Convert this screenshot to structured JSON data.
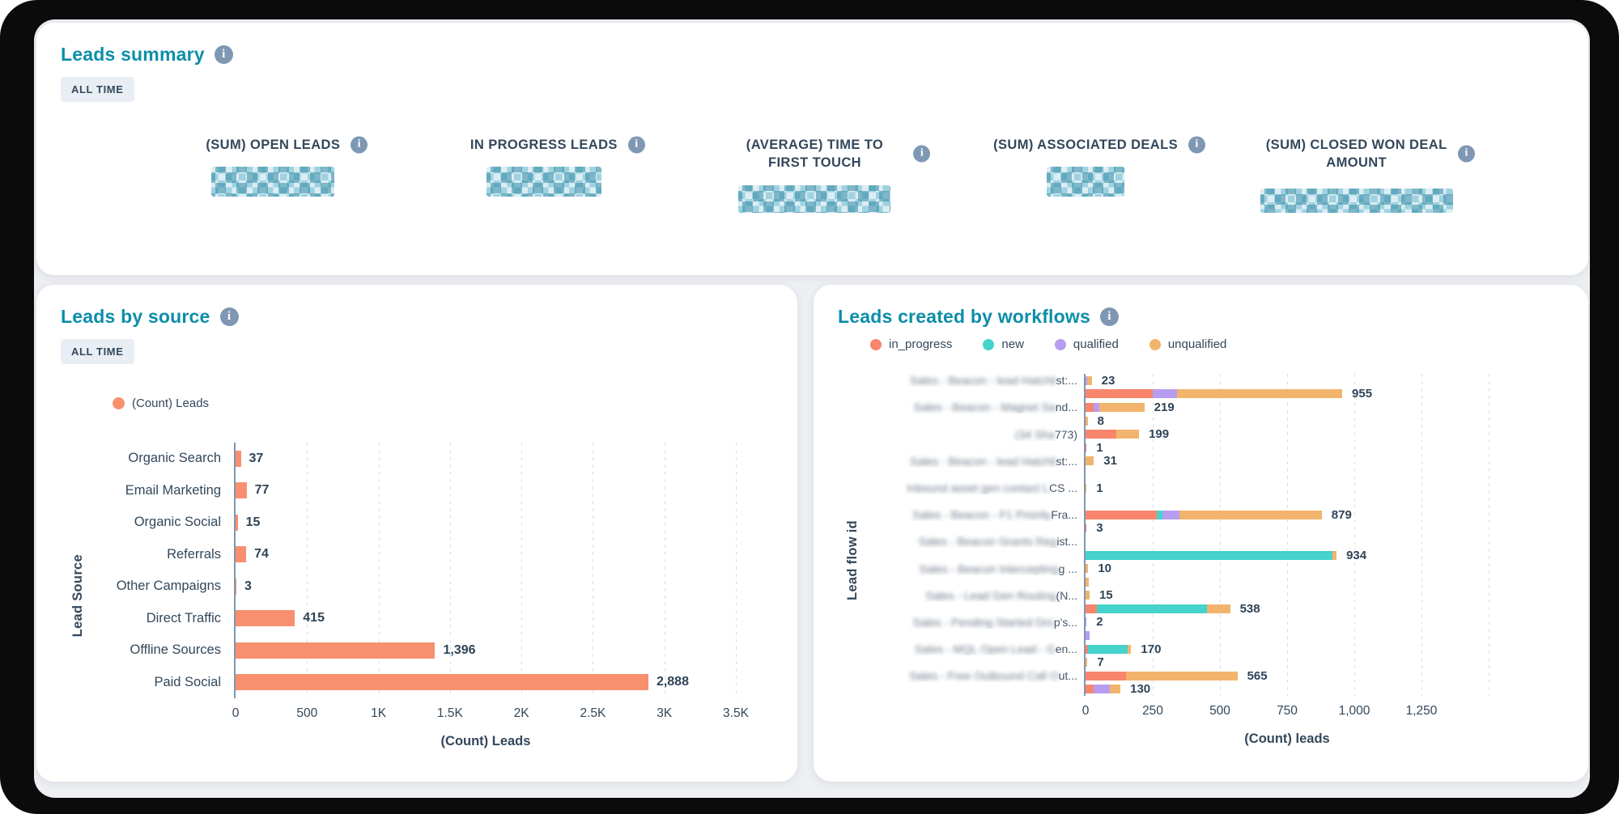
{
  "icons": {
    "info_glyph": "i"
  },
  "summary": {
    "title": "Leads summary",
    "time_range": "ALL TIME",
    "kpis": [
      {
        "label": "(SUM) OPEN LEADS",
        "value_redacted": true
      },
      {
        "label": "IN PROGRESS LEADS",
        "value_redacted": true
      },
      {
        "label": "(AVERAGE) TIME TO FIRST TOUCH",
        "value_redacted": true
      },
      {
        "label": "(SUM) ASSOCIATED DEALS",
        "value_redacted": true
      },
      {
        "label": "(SUM) CLOSED WON DEAL AMOUNT",
        "value_redacted": true
      }
    ]
  },
  "source_panel": {
    "time_range": "ALL TIME"
  },
  "chart_data": [
    {
      "type": "bar",
      "orientation": "horizontal",
      "title": "Leads by source",
      "xlabel": "(Count) Leads",
      "ylabel": "Lead Source",
      "xlim": [
        0,
        3500
      ],
      "grid_step": 500,
      "grid": true,
      "legend_position": "top-left",
      "series_name": "(Count) Leads",
      "color": "#F8906F",
      "legend": [
        {
          "name": "(Count) Leads",
          "color": "#F8906F"
        }
      ],
      "categories": [
        "Organic Search",
        "Email Marketing",
        "Organic Social",
        "Referrals",
        "Other Campaigns",
        "Direct Traffic",
        "Offline Sources",
        "Paid Social"
      ],
      "values": [
        37,
        77,
        15,
        74,
        3,
        415,
        1396,
        2888
      ],
      "value_labels": [
        "37",
        "77",
        "15",
        "74",
        "3",
        "415",
        "1,396",
        "2,888"
      ],
      "xticks": [
        "0",
        "500",
        "1K",
        "1.5K",
        "2K",
        "2.5K",
        "3K",
        "3.5K"
      ]
    },
    {
      "type": "bar",
      "orientation": "horizontal",
      "stacked": true,
      "title": "Leads created by workflows",
      "xlabel": "(Count) leads",
      "ylabel": "Lead flow id",
      "xlim": [
        0,
        1500
      ],
      "grid_step": 250,
      "grid": true,
      "legend_position": "top",
      "legend": [
        {
          "name": "in_progress",
          "color": "#F8856C"
        },
        {
          "name": "new",
          "color": "#45D3CB"
        },
        {
          "name": "qualified",
          "color": "#B79DF0"
        },
        {
          "name": "unqualified",
          "color": "#F2B46C"
        }
      ],
      "xticks": [
        "0",
        "250",
        "500",
        "750",
        "1,000",
        "1,250"
      ],
      "rows": [
        {
          "label": {
            "redacted": "Sales - Beacon - lead Hatchli",
            "visible": "st:..."
          },
          "total": "23",
          "segments": {
            "qualified": 5,
            "unqualified": 18
          }
        },
        {
          "total": "955",
          "segments": {
            "in_progress": 250,
            "qualified": 90,
            "unqualified": 615
          }
        },
        {
          "label": {
            "redacted": "Sales - Beacon - Magnet Sa",
            "visible": "nd..."
          },
          "total": "219",
          "segments": {
            "in_progress": 30,
            "qualified": 20,
            "unqualified": 169
          }
        },
        {
          "total": "8",
          "segments": {
            "unqualified": 8
          }
        },
        {
          "label": {
            "redacted": "(34 Sha",
            "visible": "773)"
          },
          "total": "199",
          "segments": {
            "in_progress": 113,
            "unqualified": 86
          }
        },
        {
          "total": "1",
          "segments": {
            "in_progress": 1
          }
        },
        {
          "label": {
            "redacted": "Sales - Beacon - lead Hatchli",
            "visible": "st:..."
          },
          "total": "31",
          "segments": {
            "unqualified": 31
          }
        },
        {},
        {
          "label": {
            "redacted": "Inbound asset gen contact L",
            "visible": "CS ..."
          },
          "total": "1",
          "segments": {
            "unqualified": 1
          }
        },
        {},
        {
          "label": {
            "redacted": "Sales - Beacon - F1 Priority",
            "visible": "Fra..."
          },
          "total": "879",
          "segments": {
            "in_progress": 264,
            "new": 22,
            "qualified": 62,
            "unqualified": 531
          }
        },
        {
          "total": "3",
          "segments": {
            "in_progress": 3
          }
        },
        {
          "label": {
            "redacted": "Sales - Beacon Grants Reg",
            "visible": "ist..."
          }
        },
        {
          "total": "934",
          "segments": {
            "new": 920,
            "unqualified": 14
          }
        },
        {
          "label": {
            "redacted": "Sales - Beacon Intercepting",
            "visible": "g ..."
          },
          "total": "10",
          "segments": {
            "unqualified": 10
          }
        },
        {
          "total": "",
          "segments": {
            "unqualified": 12
          }
        },
        {
          "label": {
            "redacted": "Sales - Lead Gen Routing ",
            "visible": "(N..."
          },
          "total": "15",
          "segments": {
            "unqualified": 15
          }
        },
        {
          "total": "538",
          "segments": {
            "in_progress": 43,
            "new": 409,
            "unqualified": 86
          }
        },
        {
          "label": {
            "redacted": "Sales - Pending Started Dro",
            "visible": "p's..."
          },
          "total": "2",
          "segments": {
            "qualified": 2
          }
        },
        {
          "total": "",
          "segments": {
            "qualified": 15
          }
        },
        {
          "label": {
            "redacted": "Sales - MQL Open Lead - G",
            "visible": "en..."
          },
          "total": "170",
          "segments": {
            "in_progress": 10,
            "new": 148,
            "unqualified": 12
          }
        },
        {
          "total": "7",
          "segments": {
            "unqualified": 7
          }
        },
        {
          "label": {
            "redacted": "Sales - Free Outbound Call O",
            "visible": "ut..."
          },
          "total": "565",
          "segments": {
            "in_progress": 152,
            "unqualified": 413
          }
        },
        {
          "total": "130",
          "segments": {
            "in_progress": 30,
            "qualified": 60,
            "unqualified": 40
          }
        }
      ]
    }
  ]
}
